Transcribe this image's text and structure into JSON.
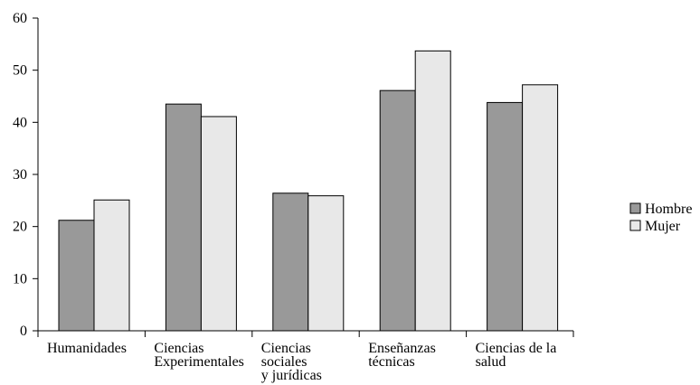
{
  "chart_data": {
    "type": "bar",
    "categories": [
      [
        "Humanidades"
      ],
      [
        "Ciencias",
        "Experimentales"
      ],
      [
        "Ciencias",
        "sociales",
        "y jurídicas"
      ],
      [
        "Enseñanzas",
        "técnicas"
      ],
      [
        "Ciencias de la",
        "salud"
      ]
    ],
    "series": [
      {
        "name": "Hombre",
        "color": "#999999",
        "values": [
          21.2,
          43.5,
          26.4,
          46.1,
          43.8
        ]
      },
      {
        "name": "Mujer",
        "color": "#e8e8e8",
        "values": [
          25.1,
          41.1,
          25.9,
          53.7,
          47.2
        ]
      }
    ],
    "ylim": [
      0,
      60
    ],
    "yticks": [
      "0",
      "10",
      "20",
      "30",
      "40",
      "50",
      "60"
    ],
    "title": "",
    "xlabel": "",
    "ylabel": "",
    "legend": "right",
    "grid": false
  }
}
